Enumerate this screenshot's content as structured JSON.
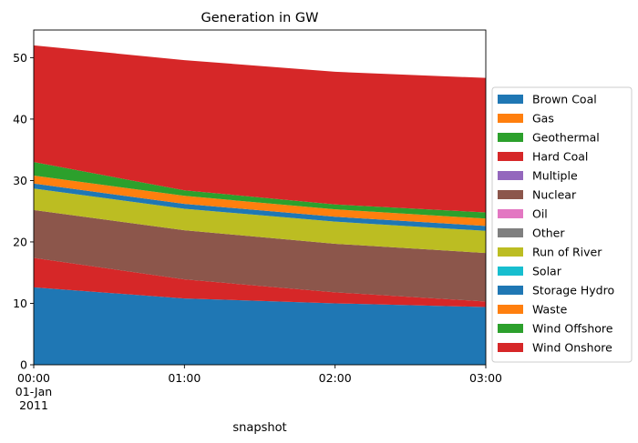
{
  "chart_data": {
    "type": "area",
    "stacked": true,
    "title": "Generation in GW",
    "xlabel": "snapshot",
    "ylabel": "",
    "x": [
      "00:00",
      "01:00",
      "02:00",
      "03:00"
    ],
    "x_tick_labels": [
      [
        "00:00",
        "01-Jan",
        "2011"
      ],
      [
        "01:00"
      ],
      [
        "02:00"
      ],
      [
        "03:00"
      ]
    ],
    "ylim": [
      0,
      54.5
    ],
    "y_ticks": [
      0,
      10,
      20,
      30,
      40,
      50
    ],
    "grid": false,
    "legend_position": "center-right",
    "series": [
      {
        "name": "Brown Coal",
        "color": "#1f77b4",
        "values": [
          12.6,
          10.8,
          10.0,
          9.4
        ]
      },
      {
        "name": "Gas",
        "color": "#ff7f0e",
        "values": [
          0.0,
          0.0,
          0.0,
          0.0
        ]
      },
      {
        "name": "Geothermal",
        "color": "#2ca02c",
        "values": [
          0.0,
          0.0,
          0.0,
          0.0
        ]
      },
      {
        "name": "Hard Coal",
        "color": "#d62728",
        "values": [
          4.8,
          3.1,
          1.8,
          0.9
        ]
      },
      {
        "name": "Multiple",
        "color": "#9467bd",
        "values": [
          0.0,
          0.0,
          0.0,
          0.0
        ]
      },
      {
        "name": "Nuclear",
        "color": "#8c564b",
        "values": [
          7.8,
          8.0,
          7.9,
          7.9
        ]
      },
      {
        "name": "Oil",
        "color": "#e377c2",
        "values": [
          0.0,
          0.0,
          0.0,
          0.0
        ]
      },
      {
        "name": "Other",
        "color": "#7f7f7f",
        "values": [
          0.0,
          0.0,
          0.0,
          0.0
        ]
      },
      {
        "name": "Run of River",
        "color": "#bcbd22",
        "values": [
          3.5,
          3.5,
          3.6,
          3.6
        ]
      },
      {
        "name": "Solar",
        "color": "#17becf",
        "values": [
          0.0,
          0.0,
          0.0,
          0.0
        ]
      },
      {
        "name": "Storage Hydro",
        "color": "#1f77b4",
        "values": [
          0.8,
          0.8,
          0.8,
          0.8
        ]
      },
      {
        "name": "Waste",
        "color": "#ff7f0e",
        "values": [
          1.3,
          1.3,
          1.2,
          1.2
        ]
      },
      {
        "name": "Wind Offshore",
        "color": "#2ca02c",
        "values": [
          2.2,
          0.9,
          0.8,
          1.0
        ]
      },
      {
        "name": "Wind Onshore",
        "color": "#d62728",
        "values": [
          19.0,
          21.2,
          21.6,
          21.9
        ]
      }
    ]
  }
}
